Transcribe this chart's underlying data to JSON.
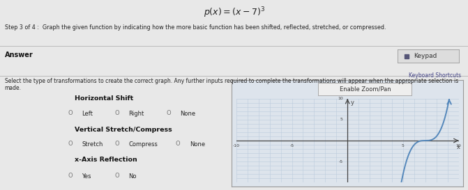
{
  "title_text": "$p(x) = (x - 7)^3$",
  "step_text": "Step 3 of 4 :  Graph the given function by indicating how the more basic function has been shifted, reflected, stretched, or compressed.",
  "answer_label": "Answer",
  "keypad_label": "Keypad",
  "keyboard_shortcuts_label": "Keyboard Shortcuts",
  "select_text": "Select the type of transformations to create the correct graph. Any further inputs required to complete the transformations will appear when the appropriate selection is made.",
  "horiz_shift_label": "Horizontal Shift",
  "left_label": "Left",
  "right_label": "Right",
  "none_label1": "None",
  "vert_label": "Vertical Stretch/Compress",
  "stretch_label": "Stretch",
  "compress_label": "Compress",
  "none_label2": "None",
  "xaxis_label": "x-Axis Reflection",
  "yes_label": "Yes",
  "no_label": "No",
  "enable_zoom_label": "Enable Zoom/Pan",
  "curve_color": "#5588bb",
  "axis_color": "#444444",
  "grid_color": "#bbccdd",
  "graph_bg": "#dde4ec",
  "x_min": -10,
  "x_max": 10,
  "y_min": -10,
  "y_max": 10,
  "bg_color": "#e8e8e8",
  "text_color": "#222222",
  "bold_label_color": "#111111",
  "keypad_bg": "#dddddd",
  "zoom_btn_bg": "#eeeeee"
}
